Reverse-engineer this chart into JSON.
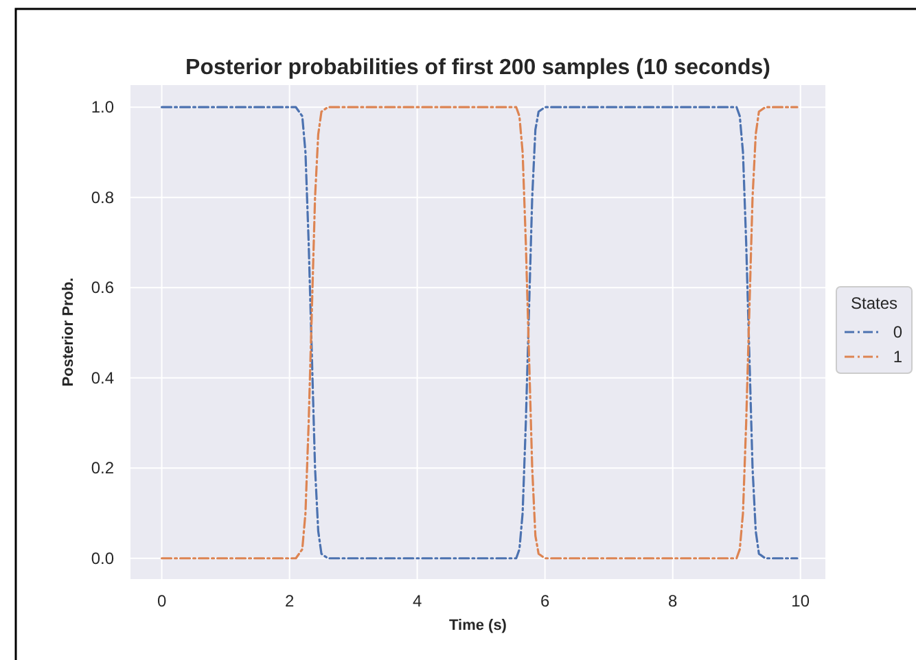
{
  "chart_data": {
    "type": "line",
    "title": "Posterior probabilities of first 200 samples (10 seconds)",
    "xlabel": "Time (s)",
    "ylabel": "Posterior Prob.",
    "legend_title": "States",
    "legend": "right",
    "grid": true,
    "line_style": "dashdot",
    "marker": "none",
    "x": [
      0,
      2.1,
      2.2,
      2.25,
      2.3,
      2.35,
      2.4,
      2.45,
      2.5,
      2.6,
      5.55,
      5.6,
      5.65,
      5.7,
      5.75,
      5.8,
      5.85,
      5.9,
      6.0,
      9.0,
      9.05,
      9.1,
      9.15,
      9.2,
      9.25,
      9.3,
      9.35,
      9.45,
      9.95
    ],
    "series": [
      {
        "name": "0",
        "color": "#4c72b0",
        "values": [
          1,
          1,
          0.98,
          0.9,
          0.7,
          0.45,
          0.2,
          0.06,
          0.01,
          0,
          0,
          0.02,
          0.1,
          0.3,
          0.55,
          0.8,
          0.95,
          0.99,
          1,
          1,
          0.98,
          0.9,
          0.7,
          0.45,
          0.2,
          0.06,
          0.01,
          0,
          0
        ]
      },
      {
        "name": "1",
        "color": "#dd8452",
        "values": [
          0,
          0,
          0.02,
          0.1,
          0.3,
          0.55,
          0.8,
          0.94,
          0.99,
          1,
          1,
          0.98,
          0.9,
          0.7,
          0.45,
          0.2,
          0.05,
          0.01,
          0,
          0,
          0.02,
          0.1,
          0.3,
          0.55,
          0.8,
          0.94,
          0.99,
          1,
          1
        ]
      }
    ],
    "xlim": [
      -0.49,
      10.39
    ],
    "xticks": [
      0,
      2,
      4,
      6,
      8,
      10
    ],
    "ylim": [
      -0.046,
      1.049
    ],
    "yticks": [
      {
        "value": 0,
        "label": "0.0"
      },
      {
        "value": 0.2,
        "label": "0.2"
      },
      {
        "value": 0.4,
        "label": "0.4"
      },
      {
        "value": 0.6,
        "label": "0.6"
      },
      {
        "value": 0.8,
        "label": "0.8"
      },
      {
        "value": 1,
        "label": "1.0"
      }
    ]
  }
}
